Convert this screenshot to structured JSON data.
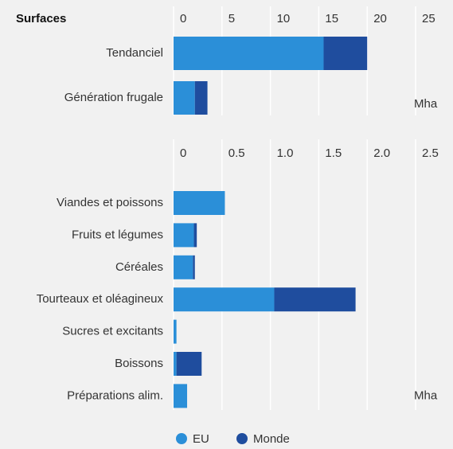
{
  "chart_data": [
    {
      "type": "bar",
      "orientation": "horizontal",
      "stacked": true,
      "title": "Surfaces",
      "categories": [
        "Tendanciel",
        "Génération frugale"
      ],
      "series": [
        {
          "name": "EU",
          "color": "#2b8fd8",
          "values": [
            15.5,
            2.2
          ]
        },
        {
          "name": "Monde",
          "color": "#1f4d9e",
          "values": [
            4.5,
            1.3
          ]
        }
      ],
      "xlim": [
        0,
        25
      ],
      "xticks": [
        0,
        5,
        10,
        15,
        20,
        25
      ],
      "grid": true,
      "annotation": "Mha",
      "legend": "bottom"
    },
    {
      "type": "bar",
      "orientation": "horizontal",
      "stacked": true,
      "categories": [
        "Viandes et poissons",
        "Fruits et légumes",
        "Céréales",
        "Tourteaux et oléagineux",
        "Sucres et excitants",
        "Boissons",
        "Préparations alim."
      ],
      "series": [
        {
          "color": "#2b8fd8",
          "values": [
            0.53,
            0.21,
            0.2,
            1.04,
            0.03,
            0.03,
            0.14
          ]
        },
        {
          "color": "#1f4d9e",
          "values": [
            0,
            0.03,
            0.02,
            0.84,
            0,
            0.26,
            0
          ]
        }
      ],
      "xlim": [
        0,
        2.5
      ],
      "xticks": [
        0,
        0.5,
        {
          "value": 1,
          "label": "1.0"
        },
        1.5,
        {
          "value": 2,
          "label": "2.0"
        },
        2.5
      ],
      "grid": true,
      "annotation": "Mha"
    }
  ]
}
